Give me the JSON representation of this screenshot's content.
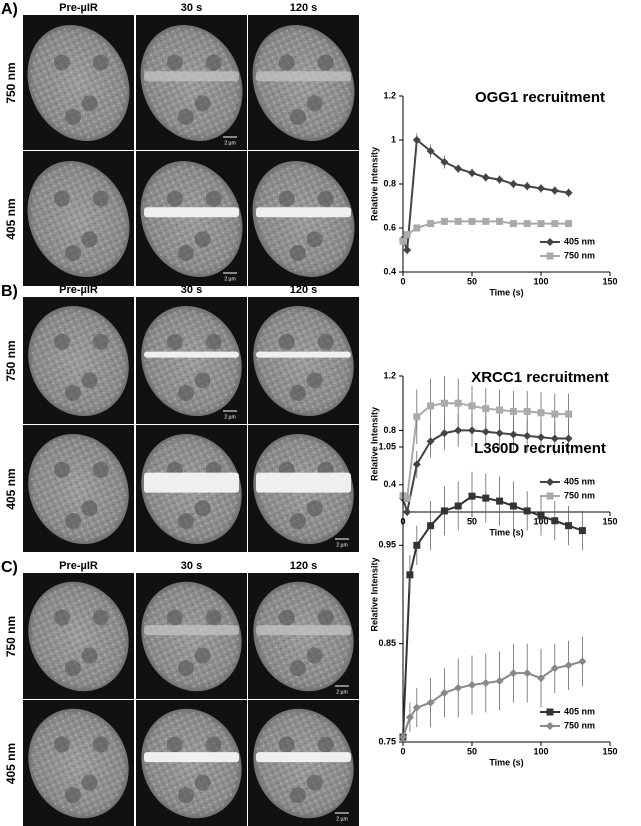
{
  "panels": [
    {
      "label": "A)",
      "columns": [
        "Pre-µIR",
        "30 s",
        "120 s"
      ],
      "rows": [
        "750 nm",
        "405 nm"
      ],
      "scale_bars": [
        "2 µm",
        "2 µm"
      ]
    },
    {
      "label": "B)",
      "columns": [
        "Pre-µIR",
        "30 s",
        "120 s"
      ],
      "rows": [
        "750 nm",
        "405 nm"
      ],
      "scale_bars": [
        "2 µm",
        "2 µm"
      ]
    },
    {
      "label": "C)",
      "columns": [
        "Pre-µIR",
        "30 s",
        "120 s"
      ],
      "rows": [
        "750 nm",
        "405 nm"
      ],
      "scale_bars": [
        "2 µm",
        "2 µm"
      ]
    }
  ],
  "chart_data": [
    {
      "type": "line",
      "title": "OGG1 recruitment",
      "x_label": "Time (s)",
      "y_label": "Relative Intensity",
      "x": [
        0,
        3,
        10,
        20,
        30,
        40,
        50,
        60,
        70,
        80,
        90,
        100,
        110,
        120
      ],
      "series": [
        {
          "name": "405 nm",
          "color": "#444444",
          "marker": "diamond",
          "values": [
            0.55,
            0.5,
            1.0,
            0.95,
            0.9,
            0.87,
            0.85,
            0.83,
            0.82,
            0.8,
            0.79,
            0.78,
            0.77,
            0.76
          ],
          "errors": [
            0.02,
            0.02,
            0.03,
            0.03,
            0.03,
            0.02,
            0.02,
            0.02,
            0.02,
            0.02,
            0.02,
            0.02,
            0.02,
            0.02
          ]
        },
        {
          "name": "750 nm",
          "color": "#aaaaaa",
          "marker": "square",
          "values": [
            0.54,
            0.57,
            0.6,
            0.62,
            0.63,
            0.63,
            0.63,
            0.63,
            0.63,
            0.62,
            0.62,
            0.62,
            0.62,
            0.62
          ],
          "errors": [
            0.01,
            0.01,
            0.01,
            0.01,
            0.01,
            0.01,
            0.01,
            0.01,
            0.01,
            0.01,
            0.01,
            0.01,
            0.01,
            0.01
          ]
        }
      ],
      "xlim": [
        0,
        150
      ],
      "xticks": [
        0,
        50,
        100,
        150
      ],
      "ylim": [
        0.4,
        1.2
      ],
      "yticks": [
        0.4,
        0.6,
        0.8,
        1,
        1.2
      ],
      "legend": "lower right"
    },
    {
      "type": "line",
      "title": "XRCC1 recruitment",
      "x_label": "Time (s)",
      "y_label": "Relative Intensity",
      "x": [
        0,
        3,
        10,
        20,
        30,
        40,
        50,
        60,
        70,
        80,
        90,
        100,
        110,
        120
      ],
      "series": [
        {
          "name": "405 nm",
          "color": "#444444",
          "marker": "diamond",
          "values": [
            0.3,
            0.2,
            0.55,
            0.72,
            0.78,
            0.8,
            0.8,
            0.79,
            0.78,
            0.77,
            0.76,
            0.75,
            0.74,
            0.74
          ],
          "errors": [
            0.03,
            0.03,
            0.1,
            0.12,
            0.12,
            0.12,
            0.12,
            0.12,
            0.12,
            0.12,
            0.12,
            0.12,
            0.12,
            0.12
          ]
        },
        {
          "name": "750 nm",
          "color": "#aaaaaa",
          "marker": "square",
          "values": [
            0.32,
            0.3,
            0.9,
            0.98,
            1.0,
            1.0,
            0.98,
            0.96,
            0.95,
            0.94,
            0.94,
            0.93,
            0.92,
            0.92
          ],
          "errors": [
            0.03,
            0.03,
            0.2,
            0.2,
            0.2,
            0.18,
            0.15,
            0.15,
            0.15,
            0.15,
            0.15,
            0.15,
            0.15,
            0.15
          ]
        }
      ],
      "xlim": [
        0,
        150
      ],
      "xticks": [
        0,
        50,
        100,
        150
      ],
      "ylim": [
        0.2,
        1.2
      ],
      "yticks": [
        0.4,
        0.8,
        1.2
      ],
      "legend": "lower right"
    },
    {
      "type": "line",
      "title": "L360D recruitment",
      "x_label": "Time (s)",
      "y_label": "Relative Intensity",
      "x": [
        0,
        5,
        10,
        20,
        30,
        40,
        50,
        60,
        70,
        80,
        90,
        100,
        110,
        120,
        130
      ],
      "series": [
        {
          "name": "405 nm",
          "color": "#333333",
          "marker": "square",
          "values": [
            0.755,
            0.92,
            0.95,
            0.97,
            0.985,
            0.99,
            1.0,
            0.998,
            0.995,
            0.99,
            0.985,
            0.98,
            0.975,
            0.97,
            0.965
          ],
          "errors": [
            0.005,
            0.02,
            0.02,
            0.025,
            0.025,
            0.025,
            0.025,
            0.025,
            0.025,
            0.025,
            0.02,
            0.02,
            0.02,
            0.02,
            0.02
          ]
        },
        {
          "name": "750 nm",
          "color": "#888888",
          "marker": "diamond",
          "values": [
            0.755,
            0.775,
            0.785,
            0.79,
            0.8,
            0.805,
            0.808,
            0.81,
            0.812,
            0.82,
            0.82,
            0.815,
            0.825,
            0.828,
            0.832
          ],
          "errors": [
            0.005,
            0.015,
            0.02,
            0.025,
            0.025,
            0.03,
            0.03,
            0.03,
            0.03,
            0.03,
            0.03,
            0.03,
            0.025,
            0.025,
            0.025
          ]
        }
      ],
      "xlim": [
        0,
        150
      ],
      "xticks": [
        0,
        50,
        100,
        150
      ],
      "ylim": [
        0.75,
        1.05
      ],
      "yticks": [
        0.75,
        0.85,
        0.95,
        1.05
      ],
      "legend": "lower right"
    }
  ]
}
